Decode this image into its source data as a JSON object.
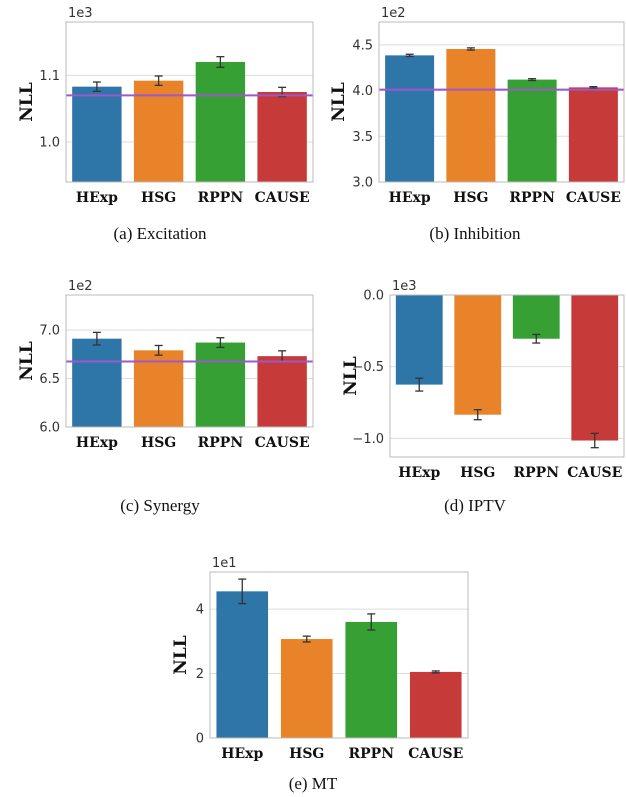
{
  "colors": {
    "HExp": "#2e75a8",
    "HSG": "#e8832a",
    "RPPN": "#36a035",
    "CAUSE": "#c63b3a",
    "reference_line": "#9b59c9",
    "grid": "#dddddd",
    "frame": "#bbbbbb",
    "error_bar": "#333333"
  },
  "chart_data": [
    {
      "type": "bar",
      "caption": "(a) Excitation",
      "ylabel": "NLL",
      "multiplier": "1e3",
      "categories": [
        "HExp",
        "HSG",
        "RPPN",
        "CAUSE"
      ],
      "values": [
        1.083,
        1.092,
        1.12,
        1.075
      ],
      "errors": [
        0.007,
        0.007,
        0.008,
        0.007
      ],
      "reference_line": 1.07,
      "ylim": [
        0.94,
        1.18
      ],
      "yticks": [
        1.0,
        1.1
      ],
      "ytick_labels": [
        "1.0",
        "1.1"
      ],
      "grid": true
    },
    {
      "type": "bar",
      "caption": "(b) Inhibition",
      "ylabel": "NLL",
      "multiplier": "1e2",
      "categories": [
        "HExp",
        "HSG",
        "RPPN",
        "CAUSE"
      ],
      "values": [
        4.385,
        4.455,
        4.12,
        4.035
      ],
      "errors": [
        0.012,
        0.012,
        0.01,
        0.008
      ],
      "reference_line": 4.01,
      "ylim": [
        3.0,
        4.75
      ],
      "yticks": [
        3.0,
        3.5,
        4.0,
        4.5
      ],
      "ytick_labels": [
        "3.0",
        "3.5",
        "4.0",
        "4.5"
      ],
      "grid": true
    },
    {
      "type": "bar",
      "caption": "(c) Synergy",
      "ylabel": "NLL",
      "multiplier": "1e2",
      "categories": [
        "HExp",
        "HSG",
        "RPPN",
        "CAUSE"
      ],
      "values": [
        6.91,
        6.79,
        6.87,
        6.73
      ],
      "errors": [
        0.065,
        0.05,
        0.05,
        0.055
      ],
      "reference_line": 6.675,
      "ylim": [
        6.0,
        7.36
      ],
      "yticks": [
        6.0,
        6.5,
        7.0
      ],
      "ytick_labels": [
        "6.0",
        "6.5",
        "7.0"
      ],
      "grid": true
    },
    {
      "type": "bar",
      "caption": "(d) IPTV",
      "ylabel": "NLL",
      "multiplier": "1e3",
      "categories": [
        "HExp",
        "HSG",
        "RPPN",
        "CAUSE"
      ],
      "values": [
        -0.625,
        -0.835,
        -0.305,
        -1.015
      ],
      "errors": [
        0.045,
        0.035,
        0.03,
        0.05
      ],
      "ylim": [
        -1.13,
        0.0
      ],
      "yticks": [
        -1.0,
        -0.5,
        0.0
      ],
      "ytick_labels": [
        "−1.0",
        "−0.5",
        "0.0"
      ],
      "grid": true
    },
    {
      "type": "bar",
      "caption": "(e) MT",
      "ylabel": "NLL",
      "multiplier": "1e1",
      "categories": [
        "HExp",
        "HSG",
        "RPPN",
        "CAUSE"
      ],
      "values": [
        4.55,
        3.07,
        3.6,
        2.05
      ],
      "errors": [
        0.38,
        0.09,
        0.25,
        0.03
      ],
      "ylim": [
        0,
        5.15
      ],
      "yticks": [
        0,
        2,
        4
      ],
      "ytick_labels": [
        "0",
        "2",
        "4"
      ],
      "grid": true
    }
  ]
}
